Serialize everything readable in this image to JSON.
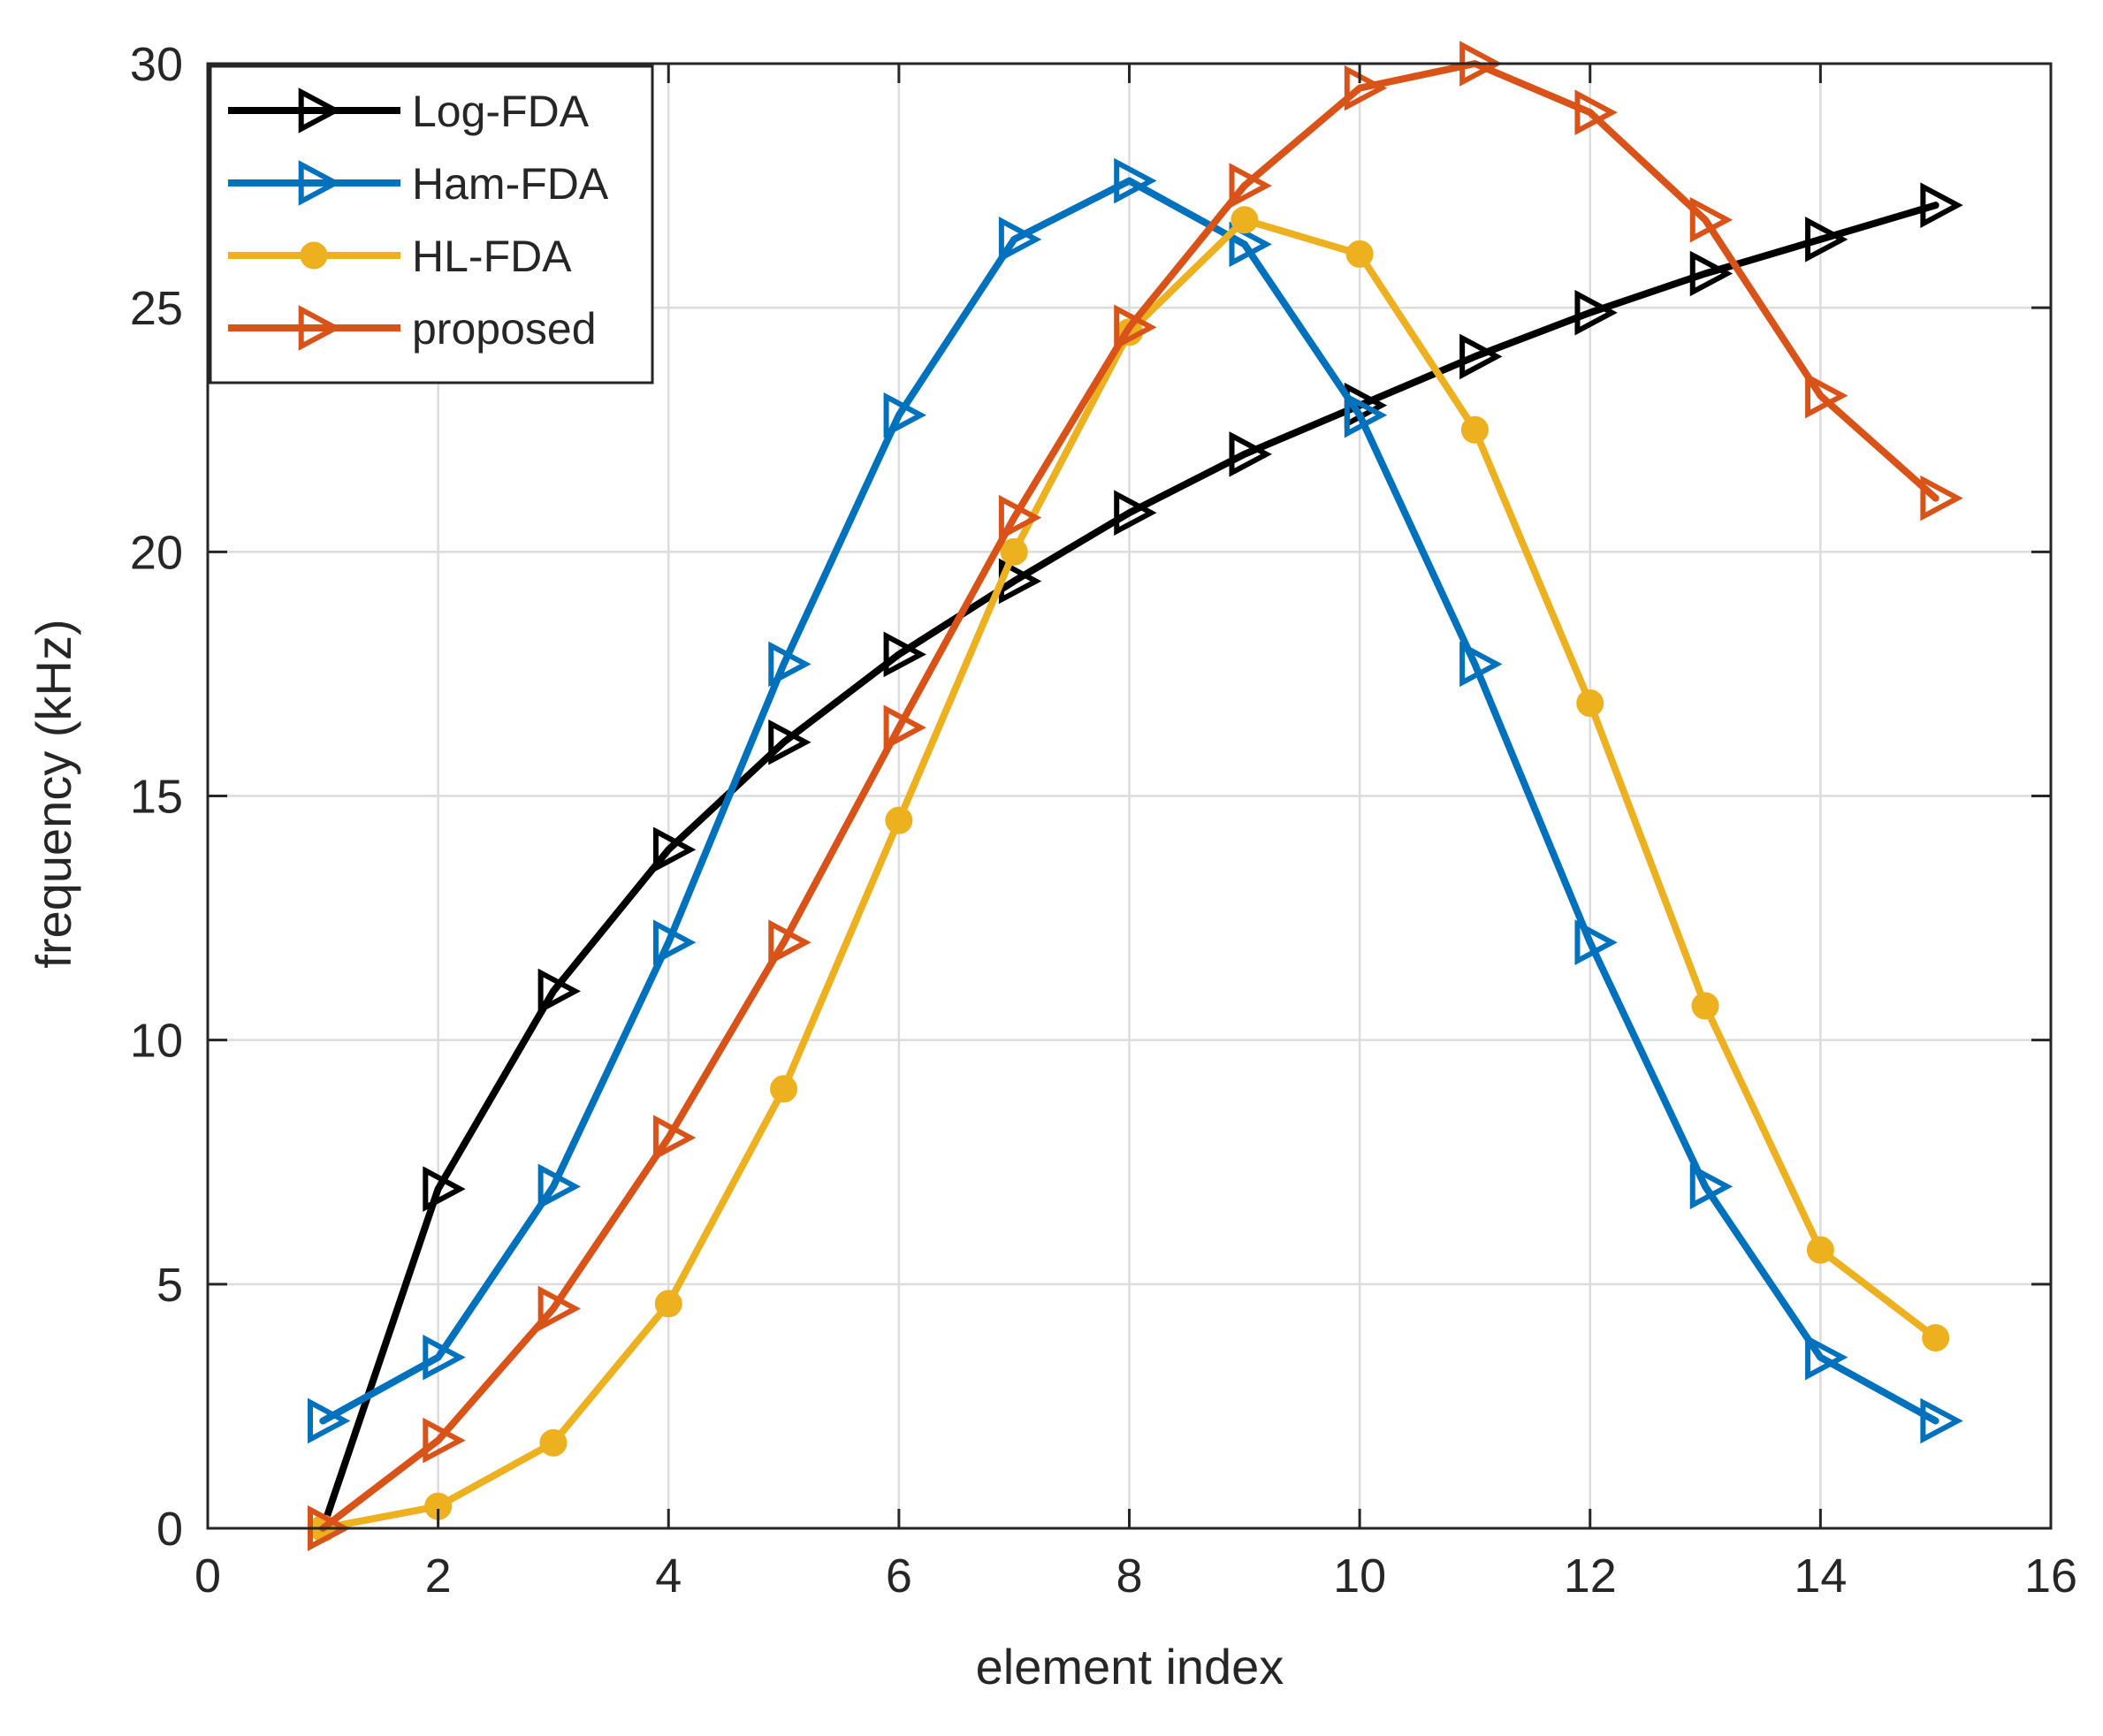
{
  "chart_data": {
    "type": "line",
    "title": "",
    "xlabel": "element index",
    "ylabel": "frequency (kHz)",
    "xlim": [
      0,
      16
    ],
    "ylim": [
      0,
      30
    ],
    "xticks": [
      0,
      2,
      4,
      6,
      8,
      10,
      12,
      14,
      16
    ],
    "yticks": [
      0,
      5,
      10,
      15,
      20,
      25,
      30
    ],
    "grid": true,
    "legend_position": "top-left",
    "x": [
      1,
      2,
      3,
      4,
      5,
      6,
      7,
      8,
      9,
      10,
      11,
      12,
      13,
      14,
      15
    ],
    "series": [
      {
        "name": "Log-FDA",
        "color": "#000000",
        "marker": "triangle-right",
        "values": [
          0,
          6.95,
          11.0,
          13.9,
          16.1,
          17.9,
          19.4,
          20.8,
          22.0,
          23.0,
          24.0,
          24.9,
          25.7,
          26.4,
          27.1
        ]
      },
      {
        "name": "Ham-FDA",
        "color": "#0072BD",
        "marker": "triangle-right",
        "values": [
          2.2,
          3.5,
          7.0,
          12.0,
          17.7,
          22.8,
          26.4,
          27.6,
          26.3,
          22.8,
          17.7,
          12.0,
          7.0,
          3.5,
          2.2
        ]
      },
      {
        "name": "HL-FDA",
        "color": "#EDB120",
        "marker": "circle",
        "values": [
          0,
          0.45,
          1.75,
          4.6,
          9.0,
          14.5,
          20.0,
          24.5,
          26.8,
          26.1,
          22.5,
          16.9,
          10.7,
          5.7,
          3.9
        ]
      },
      {
        "name": "proposed",
        "color": "#D95319",
        "marker": "triangle-right",
        "values": [
          0,
          1.8,
          4.5,
          8.0,
          12.0,
          16.4,
          20.7,
          24.6,
          27.5,
          29.5,
          30.0,
          29.0,
          26.8,
          23.2,
          21.1
        ]
      }
    ]
  }
}
